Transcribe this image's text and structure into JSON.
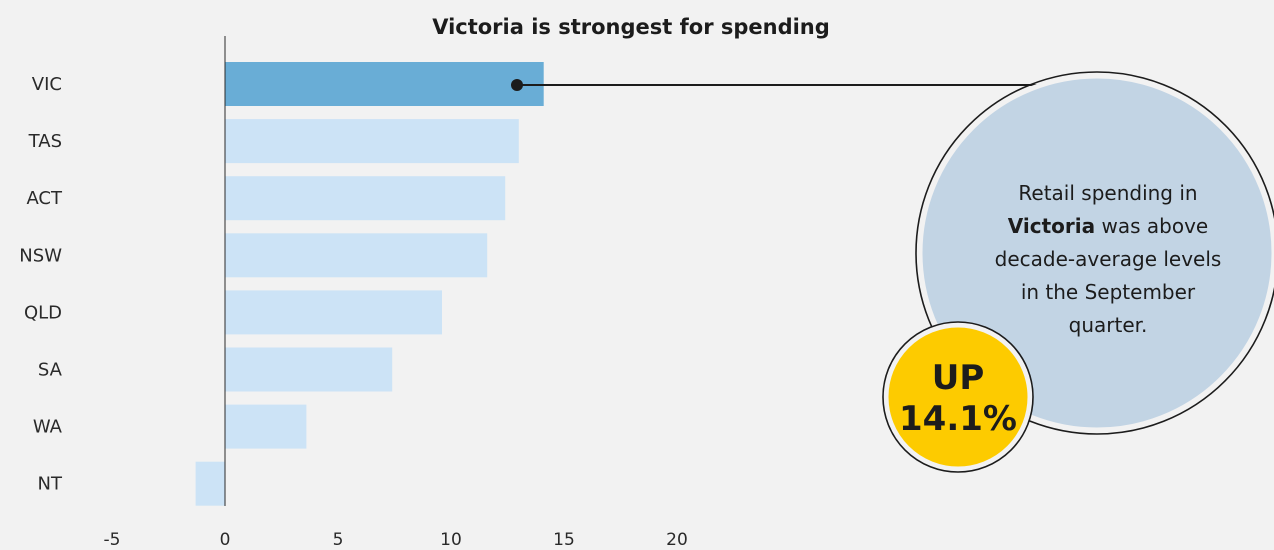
{
  "chart_data": {
    "type": "bar",
    "orientation": "horizontal",
    "title": "Victoria is strongest for spending",
    "xlabel": "",
    "ylabel": "",
    "categories": [
      "VIC",
      "TAS",
      "ACT",
      "NSW",
      "QLD",
      "SA",
      "WA",
      "NT"
    ],
    "values": [
      14.1,
      13.0,
      12.4,
      11.6,
      9.6,
      7.4,
      3.6,
      -1.3
    ],
    "highlight": "VIC",
    "xlim": [
      -5,
      20
    ],
    "xticks": [
      "-5",
      "0",
      "5",
      "10",
      "15",
      "20"
    ],
    "grid": false
  },
  "colors": {
    "background": "#f2f2f2",
    "bar": "#cce3f6",
    "bar_highlight": "#69add6",
    "callout_circle": "#c2d4e4",
    "badge": "#fdcb00",
    "axis": "#2a2a2a"
  },
  "callout": {
    "line1": "Retail spending in",
    "line2_bold": "Victoria",
    "line2_rest": " was above",
    "line3": "decade-average levels",
    "line4": "in the September",
    "line5": "quarter."
  },
  "badge": {
    "line1": "UP",
    "line2": "14.1%"
  }
}
